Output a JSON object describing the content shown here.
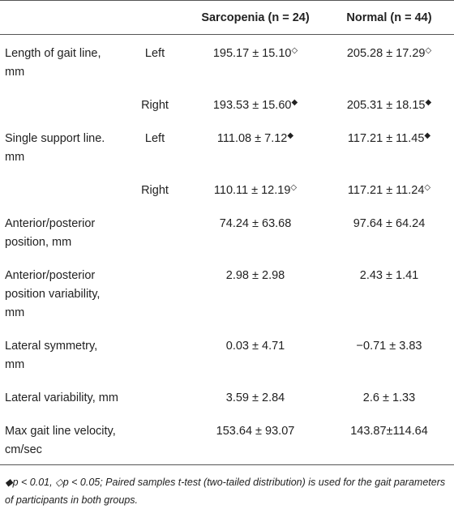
{
  "table": {
    "header": {
      "sarcopenia": "Sarcopenia (n = 24)",
      "normal": "Normal (n = 44)"
    },
    "rows": [
      {
        "label": "Length of gait line, mm",
        "side": "Left",
        "sarcopenia": "195.17 ± 15.10",
        "sarcopenia_marker": "◇",
        "normal": "205.28 ± 17.29",
        "normal_marker": "◇"
      },
      {
        "side": "Right",
        "sarcopenia": "193.53 ± 15.60",
        "sarcopenia_marker": "◆",
        "normal": "205.31 ± 18.15",
        "normal_marker": "◆"
      },
      {
        "label": "Single support line. mm",
        "side": "Left",
        "sarcopenia": "111.08 ± 7.12",
        "sarcopenia_marker": "◆",
        "normal": "117.21 ± 11.45",
        "normal_marker": "◆"
      },
      {
        "side": "Right",
        "sarcopenia": "110.11 ± 12.19",
        "sarcopenia_marker": "◇",
        "normal": "117.21 ± 11.24",
        "normal_marker": "◇"
      },
      {
        "label": "Anterior/posterior position, mm",
        "sarcopenia": "74.24 ± 63.68",
        "normal": "97.64 ± 64.24"
      },
      {
        "label": "Anterior/posterior position variability, mm",
        "sarcopenia": "2.98 ± 2.98",
        "normal": "2.43 ± 1.41"
      },
      {
        "label": "Lateral symmetry, mm",
        "sarcopenia": "0.03 ± 4.71",
        "normal": "−0.71 ± 3.83"
      },
      {
        "label": "Lateral variability, mm",
        "sarcopenia": "3.59 ± 2.84",
        "normal": "2.6 ± 1.33"
      },
      {
        "label": "Max gait line velocity, cm/sec",
        "sarcopenia": "153.64 ± 93.07",
        "normal": "143.87±114.64"
      }
    ],
    "footnote": "◆p < 0.01, ◇p < 0.05; Paired samples t-test (two-tailed distribution) is used for the gait parameters of participants in both groups."
  }
}
